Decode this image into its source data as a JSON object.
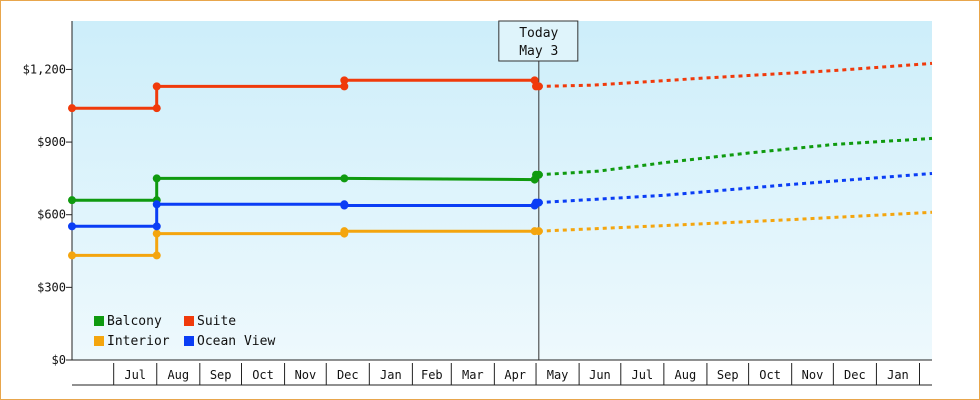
{
  "chart_data": {
    "type": "line",
    "title": "",
    "xlabel": "",
    "ylabel": "",
    "ylim": [
      0,
      1400
    ],
    "y_ticks": [
      {
        "value": 0,
        "label": "$0"
      },
      {
        "value": 300,
        "label": "$300"
      },
      {
        "value": 600,
        "label": "$600"
      },
      {
        "value": 900,
        "label": "$900"
      },
      {
        "value": 1200,
        "label": "$1,200"
      }
    ],
    "x_range": [
      "2017-06-01",
      "2019-02-10"
    ],
    "x_ticks": [
      {
        "label": "Jul",
        "start": "2017-07-01",
        "end": "2017-08-01"
      },
      {
        "label": "Aug",
        "start": "2017-08-01",
        "end": "2017-09-01"
      },
      {
        "label": "Sep",
        "start": "2017-09-01",
        "end": "2017-10-01"
      },
      {
        "label": "Oct",
        "start": "2017-10-01",
        "end": "2017-11-01"
      },
      {
        "label": "Nov",
        "start": "2017-11-01",
        "end": "2017-12-01"
      },
      {
        "label": "Dec",
        "start": "2017-12-01",
        "end": "2018-01-01"
      },
      {
        "label": "Jan",
        "start": "2018-01-01",
        "end": "2018-02-01"
      },
      {
        "label": "Feb",
        "start": "2018-02-01",
        "end": "2018-03-01"
      },
      {
        "label": "Mar",
        "start": "2018-03-01",
        "end": "2018-04-01"
      },
      {
        "label": "Apr",
        "start": "2018-04-01",
        "end": "2018-05-01"
      },
      {
        "label": "May",
        "start": "2018-05-01",
        "end": "2018-06-01"
      },
      {
        "label": "Jun",
        "start": "2018-06-01",
        "end": "2018-07-01"
      },
      {
        "label": "Jul",
        "start": "2018-07-01",
        "end": "2018-08-01"
      },
      {
        "label": "Aug",
        "start": "2018-08-01",
        "end": "2018-09-01"
      },
      {
        "label": "Sep",
        "start": "2018-09-01",
        "end": "2018-10-01"
      },
      {
        "label": "Oct",
        "start": "2018-10-01",
        "end": "2018-11-01"
      },
      {
        "label": "Nov",
        "start": "2018-11-01",
        "end": "2018-12-01"
      },
      {
        "label": "Dec",
        "start": "2018-12-01",
        "end": "2019-01-01"
      },
      {
        "label": "Jan",
        "start": "2019-01-01",
        "end": "2019-02-01"
      }
    ],
    "today": {
      "date": "2018-05-03",
      "label_line1": "Today",
      "label_line2": "May 3"
    },
    "grid": false,
    "legend_position": "bottom-left",
    "background_gradient": [
      "#cdeefa",
      "#eef9fd"
    ],
    "series": [
      {
        "name": "Balcony",
        "color": "#0f9a0f",
        "points": [
          {
            "x": "2017-06-01",
            "y": 660
          },
          {
            "x": "2017-08-01",
            "y": 660
          },
          {
            "x": "2017-08-01",
            "y": 750
          },
          {
            "x": "2017-12-14",
            "y": 750
          },
          {
            "x": "2018-05-01",
            "y": 745
          },
          {
            "x": "2018-05-01",
            "y": 765
          },
          {
            "x": "2018-05-03",
            "y": 765
          }
        ],
        "forecast": [
          {
            "x": "2018-05-03",
            "y": 765
          },
          {
            "x": "2018-06-15",
            "y": 780
          },
          {
            "x": "2018-08-01",
            "y": 815
          },
          {
            "x": "2018-10-01",
            "y": 855
          },
          {
            "x": "2018-12-01",
            "y": 890
          },
          {
            "x": "2019-02-10",
            "y": 915
          }
        ]
      },
      {
        "name": "Interior",
        "color": "#f4a50e",
        "points": [
          {
            "x": "2017-06-01",
            "y": 432
          },
          {
            "x": "2017-08-01",
            "y": 432
          },
          {
            "x": "2017-08-01",
            "y": 522
          },
          {
            "x": "2017-12-14",
            "y": 522
          },
          {
            "x": "2017-12-14",
            "y": 532
          },
          {
            "x": "2018-05-01",
            "y": 532
          },
          {
            "x": "2018-05-03",
            "y": 532
          }
        ],
        "forecast": [
          {
            "x": "2018-05-03",
            "y": 532
          },
          {
            "x": "2018-08-01",
            "y": 555
          },
          {
            "x": "2018-11-01",
            "y": 580
          },
          {
            "x": "2019-02-10",
            "y": 610
          }
        ]
      },
      {
        "name": "Suite",
        "color": "#f03a0b",
        "points": [
          {
            "x": "2017-06-01",
            "y": 1040
          },
          {
            "x": "2017-08-01",
            "y": 1040
          },
          {
            "x": "2017-08-01",
            "y": 1130
          },
          {
            "x": "2017-12-14",
            "y": 1130
          },
          {
            "x": "2017-12-14",
            "y": 1155
          },
          {
            "x": "2018-05-01",
            "y": 1155
          },
          {
            "x": "2018-05-01",
            "y": 1130
          },
          {
            "x": "2018-05-03",
            "y": 1130
          }
        ],
        "forecast": [
          {
            "x": "2018-05-03",
            "y": 1130
          },
          {
            "x": "2018-06-10",
            "y": 1135
          },
          {
            "x": "2018-09-01",
            "y": 1165
          },
          {
            "x": "2018-12-01",
            "y": 1195
          },
          {
            "x": "2019-02-10",
            "y": 1225
          }
        ]
      },
      {
        "name": "Ocean View",
        "color": "#0a3df5",
        "points": [
          {
            "x": "2017-06-01",
            "y": 552
          },
          {
            "x": "2017-08-01",
            "y": 552
          },
          {
            "x": "2017-08-01",
            "y": 643
          },
          {
            "x": "2017-12-14",
            "y": 643
          },
          {
            "x": "2017-12-14",
            "y": 638
          },
          {
            "x": "2018-05-01",
            "y": 638
          },
          {
            "x": "2018-05-01",
            "y": 650
          },
          {
            "x": "2018-05-03",
            "y": 650
          }
        ],
        "forecast": [
          {
            "x": "2018-05-03",
            "y": 650
          },
          {
            "x": "2018-08-01",
            "y": 680
          },
          {
            "x": "2018-11-01",
            "y": 725
          },
          {
            "x": "2019-02-10",
            "y": 770
          }
        ]
      }
    ],
    "markers": [
      {
        "series": "Balcony",
        "x": "2017-06-01",
        "y": 660
      },
      {
        "series": "Balcony",
        "x": "2017-08-01",
        "y": 660
      },
      {
        "series": "Balcony",
        "x": "2017-08-01",
        "y": 750
      },
      {
        "series": "Balcony",
        "x": "2017-12-14",
        "y": 750
      },
      {
        "series": "Balcony",
        "x": "2018-04-30",
        "y": 745
      },
      {
        "series": "Balcony",
        "x": "2018-05-01",
        "y": 765
      },
      {
        "series": "Balcony",
        "x": "2018-05-03",
        "y": 765
      },
      {
        "series": "Interior",
        "x": "2017-06-01",
        "y": 432
      },
      {
        "series": "Interior",
        "x": "2017-08-01",
        "y": 432
      },
      {
        "series": "Interior",
        "x": "2017-08-01",
        "y": 522
      },
      {
        "series": "Interior",
        "x": "2017-12-14",
        "y": 522
      },
      {
        "series": "Interior",
        "x": "2017-12-14",
        "y": 532
      },
      {
        "series": "Interior",
        "x": "2018-04-30",
        "y": 532
      },
      {
        "series": "Interior",
        "x": "2018-05-03",
        "y": 532
      },
      {
        "series": "Suite",
        "x": "2017-06-01",
        "y": 1040
      },
      {
        "series": "Suite",
        "x": "2017-08-01",
        "y": 1040
      },
      {
        "series": "Suite",
        "x": "2017-08-01",
        "y": 1130
      },
      {
        "series": "Suite",
        "x": "2017-12-14",
        "y": 1130
      },
      {
        "series": "Suite",
        "x": "2017-12-14",
        "y": 1155
      },
      {
        "series": "Suite",
        "x": "2018-04-30",
        "y": 1155
      },
      {
        "series": "Suite",
        "x": "2018-05-01",
        "y": 1130
      },
      {
        "series": "Suite",
        "x": "2018-05-03",
        "y": 1130
      },
      {
        "series": "Ocean View",
        "x": "2017-06-01",
        "y": 552
      },
      {
        "series": "Ocean View",
        "x": "2017-08-01",
        "y": 552
      },
      {
        "series": "Ocean View",
        "x": "2017-08-01",
        "y": 643
      },
      {
        "series": "Ocean View",
        "x": "2017-12-14",
        "y": 643
      },
      {
        "series": "Ocean View",
        "x": "2017-12-14",
        "y": 638
      },
      {
        "series": "Ocean View",
        "x": "2018-04-30",
        "y": 638
      },
      {
        "series": "Ocean View",
        "x": "2018-05-01",
        "y": 650
      },
      {
        "series": "Ocean View",
        "x": "2018-05-03",
        "y": 650
      }
    ],
    "legend": [
      {
        "name": "Balcony",
        "color": "#0f9a0f"
      },
      {
        "name": "Suite",
        "color": "#f03a0b"
      },
      {
        "name": "Interior",
        "color": "#f4a50e"
      },
      {
        "name": "Ocean View",
        "color": "#0a3df5"
      }
    ]
  }
}
